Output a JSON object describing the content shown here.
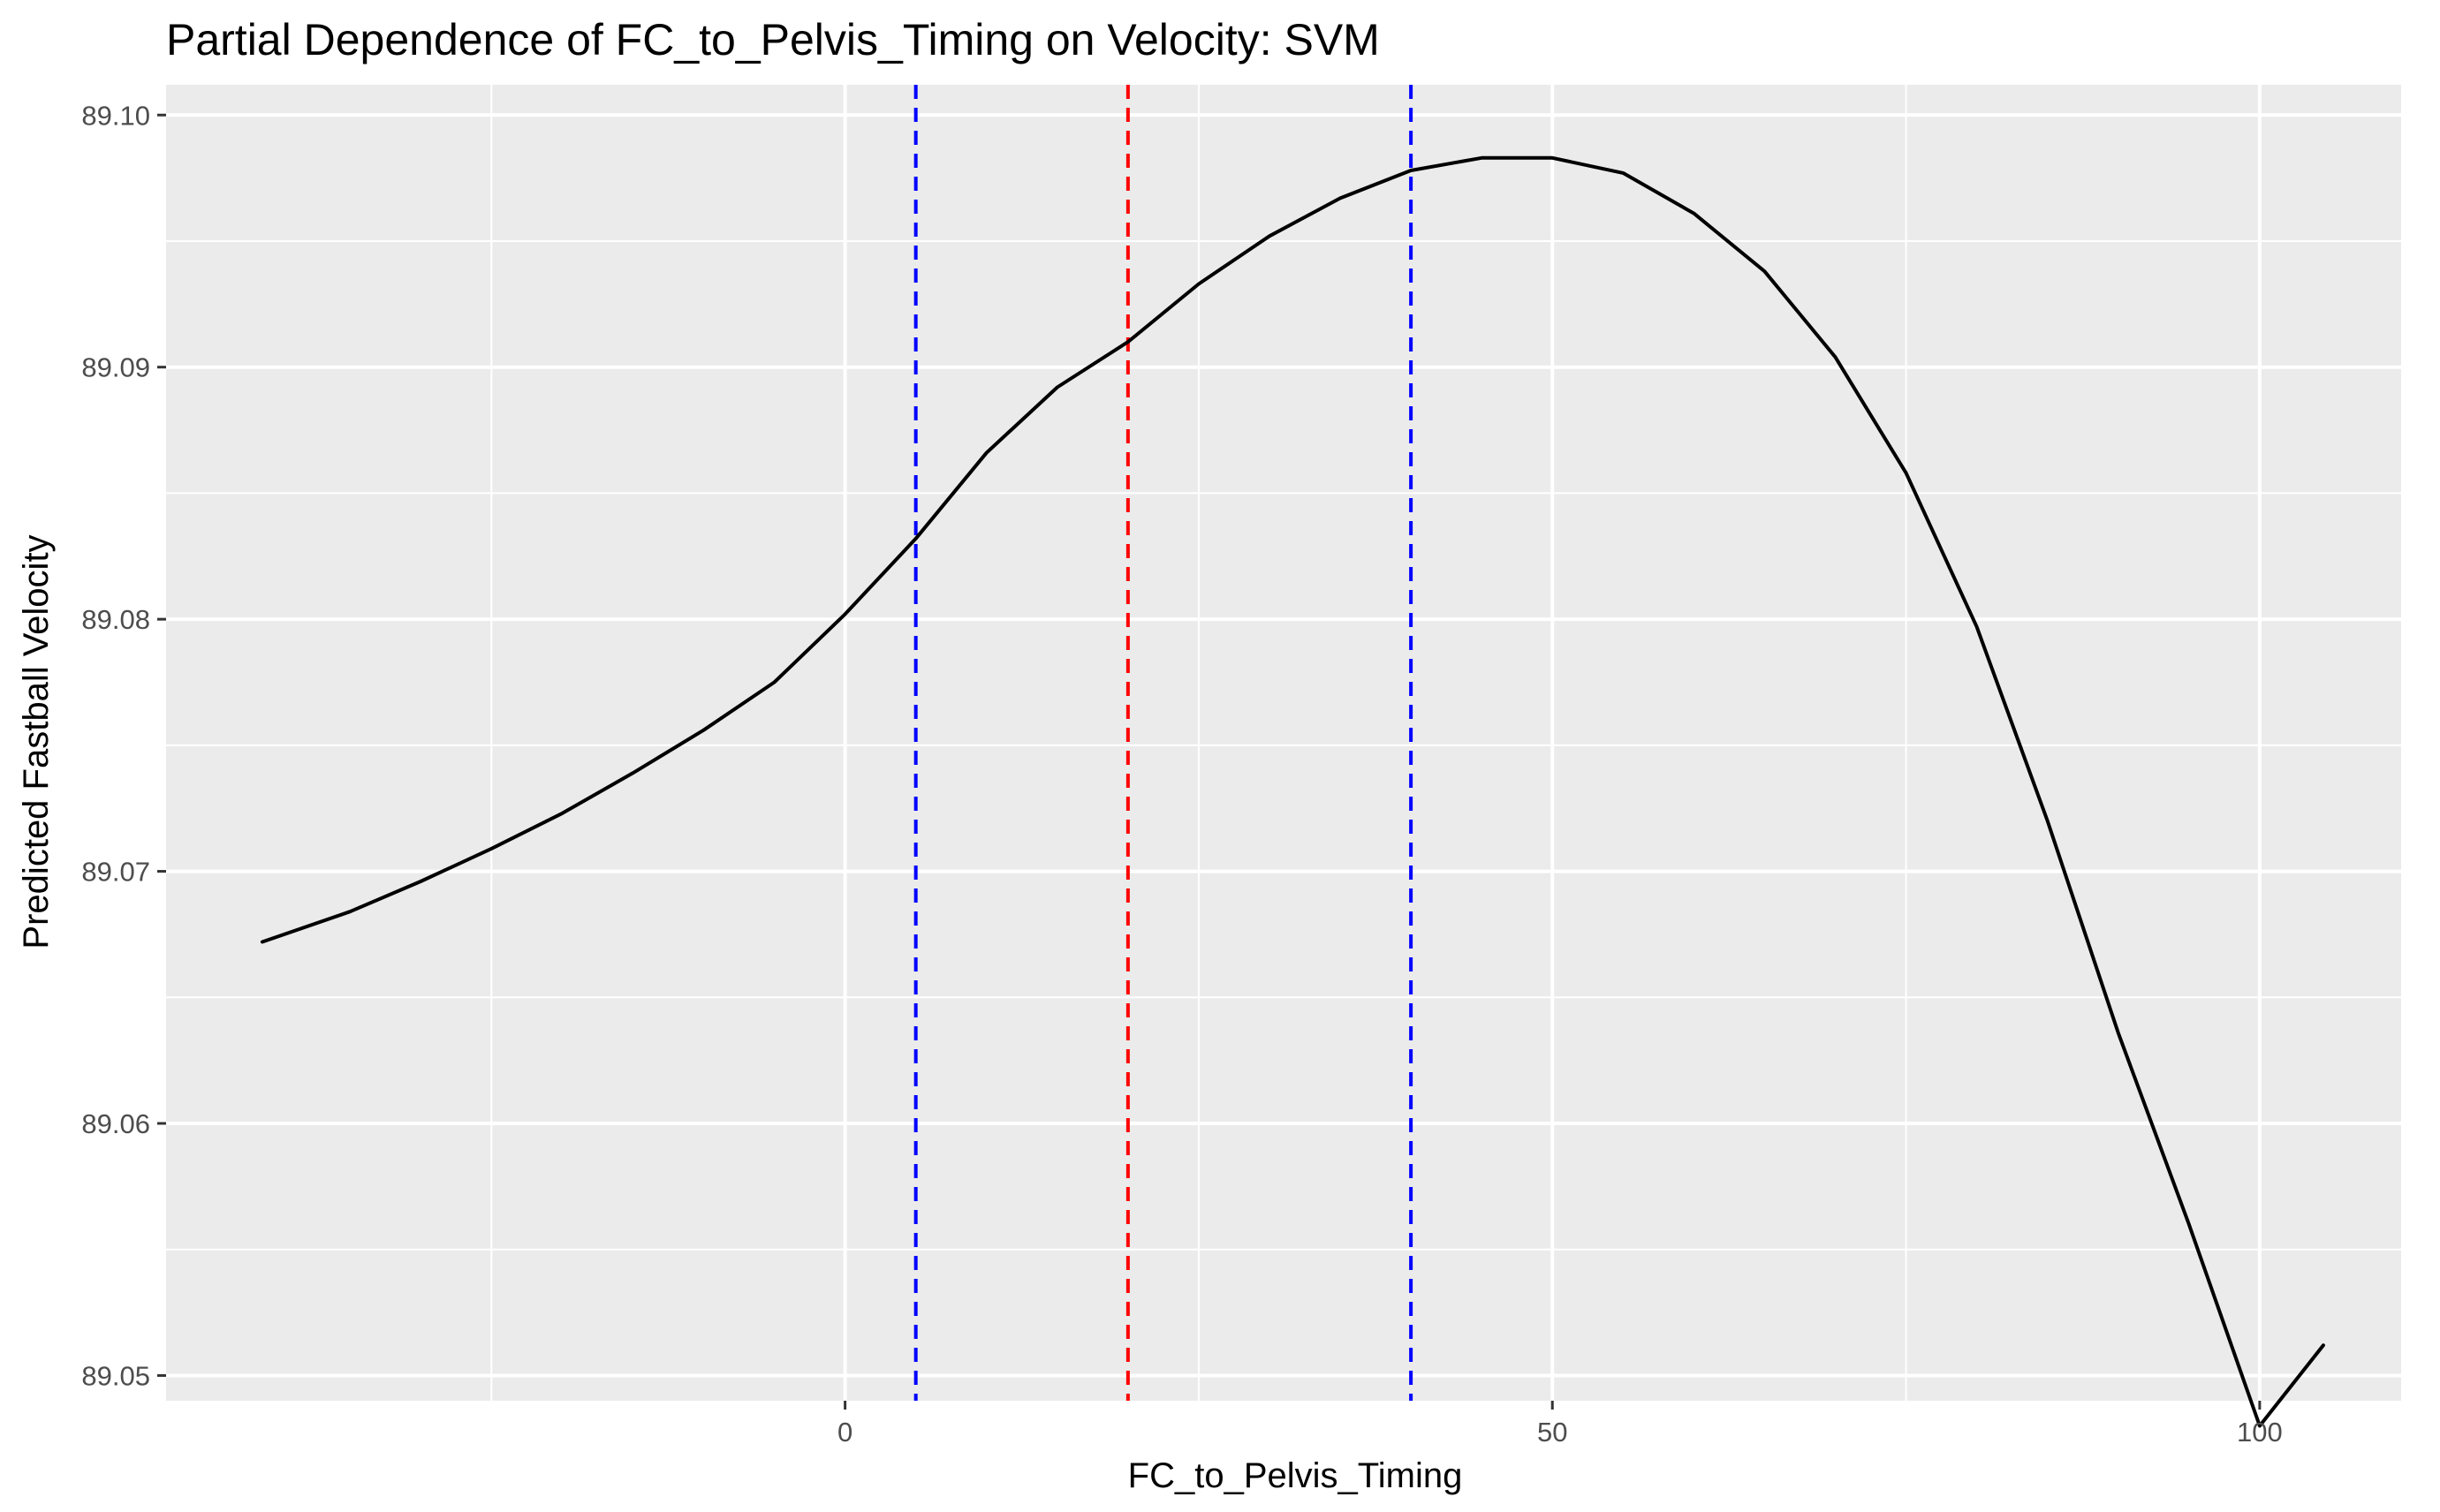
{
  "chart_data": {
    "type": "line",
    "title": "Partial Dependence of FC_to_Pelvis_Timing on Velocity: SVM",
    "xlabel": "FC_to_Pelvis_Timing",
    "ylabel": "Predicted Fastball Velocity",
    "xlim": [
      -48,
      110
    ],
    "ylim": [
      89.049,
      89.1012
    ],
    "x_ticks": [
      0,
      50,
      100
    ],
    "x_tick_labels": [
      "0",
      "50",
      "100"
    ],
    "x_minor_ticks": [
      -25,
      25,
      75
    ],
    "y_ticks": [
      89.05,
      89.06,
      89.07,
      89.08,
      89.09,
      89.1
    ],
    "y_tick_labels": [
      "89.05",
      "89.06",
      "89.07",
      "89.08",
      "89.09",
      "89.10"
    ],
    "y_minor_ticks": [
      89.055,
      89.065,
      89.075,
      89.085,
      89.095
    ],
    "grid": true,
    "colors": {
      "panel": "#EBEBEB",
      "grid": "#FFFFFF",
      "line": "#000000",
      "center_line": "#FF0000",
      "bound_lines": "#0000FF"
    },
    "series": [
      {
        "x": [
          -41.2,
          -35,
          -30,
          -25,
          -20,
          -15,
          -10,
          -5,
          0,
          5,
          10,
          15,
          20,
          25,
          30,
          35,
          40,
          45,
          50,
          55,
          60,
          65,
          70,
          75,
          80,
          85,
          90,
          95,
          100,
          104.5
        ],
        "values": [
          89.0672,
          89.0684,
          89.0696,
          89.0709,
          89.0723,
          89.0739,
          89.0756,
          89.0775,
          89.0802,
          89.0832,
          89.0866,
          89.0892,
          89.091,
          89.0933,
          89.0952,
          89.0967,
          89.0978,
          89.0983,
          89.0983,
          89.0977,
          89.0961,
          89.0938,
          89.0904,
          89.0858,
          89.0797,
          89.072,
          89.0636,
          89.056,
          89.048,
          89.0512
        ]
      }
    ],
    "vlines": [
      {
        "x": 5,
        "color": "#0000FF",
        "style": "dashed"
      },
      {
        "x": 20,
        "color": "#FF0000",
        "style": "dashed"
      },
      {
        "x": 40,
        "color": "#0000FF",
        "style": "dashed"
      }
    ]
  }
}
